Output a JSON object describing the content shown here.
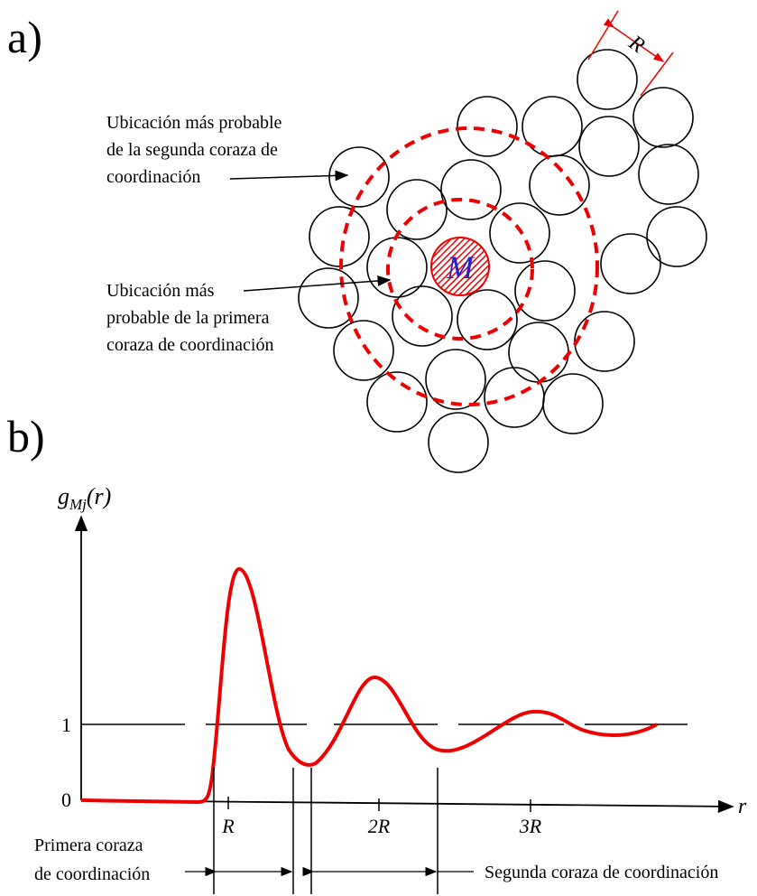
{
  "panel_a": {
    "label": "a)",
    "radius_label": "R",
    "center_label": "M",
    "second_shell_note": [
      "Ubicación más probable",
      "de la segunda coraza de",
      "coordinación"
    ],
    "first_shell_note": [
      "Ubicación más",
      "probable de la primera",
      "coraza de coordinación"
    ]
  },
  "panel_b": {
    "label": "b)",
    "y_axis": {
      "symbol": "g",
      "subscript": "Mj",
      "argument": "(r)"
    },
    "x_axis": "r",
    "y_ticks": [
      "0",
      "1"
    ],
    "x_ticks": [
      "R",
      "2R",
      "3R"
    ],
    "first_shell": [
      "Primera coraza",
      "de coordinación"
    ],
    "second_shell": "Segunda coraza de coordinación"
  }
}
